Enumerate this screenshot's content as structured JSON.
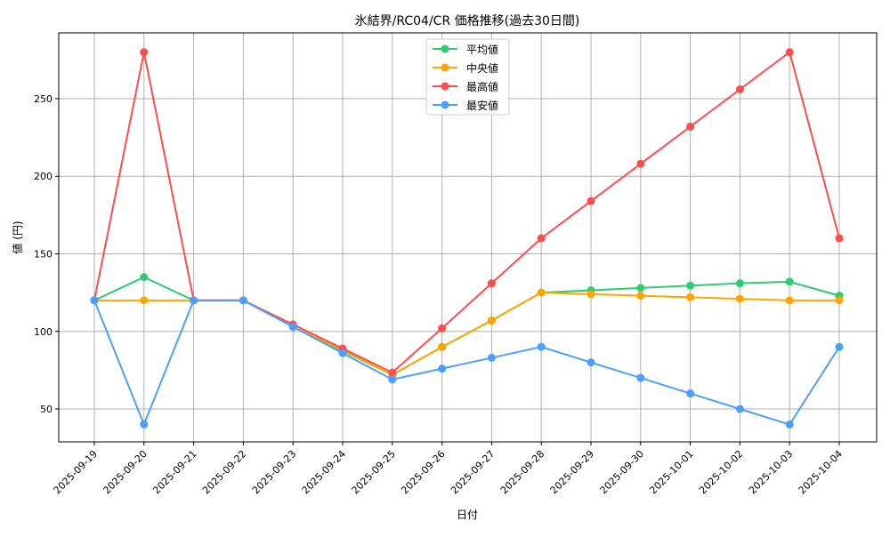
{
  "chart_data": {
    "type": "line",
    "title": "氷結界/RC04/CR 価格推移(過去30日間)",
    "xlabel": "日付",
    "ylabel": "値 (円)",
    "ylim": [
      28.8,
      292.4
    ],
    "yticks": [
      50,
      100,
      150,
      200,
      250
    ],
    "grid": true,
    "legend_position": "top-center",
    "categories": [
      "2025-09-19",
      "2025-09-20",
      "2025-09-21",
      "2025-09-22",
      "2025-09-23",
      "2025-09-24",
      "2025-09-25",
      "2025-09-26",
      "2025-09-27",
      "2025-09-28",
      "2025-09-29",
      "2025-09-30",
      "2025-10-01",
      "2025-10-02",
      "2025-10-03",
      "2025-10-04"
    ],
    "series": [
      {
        "name": "平均値",
        "color": "#2ecc71",
        "values": [
          120,
          135,
          120,
          120,
          103,
          87.5,
          72,
          90,
          107,
          125,
          126.5,
          128,
          129.5,
          131,
          132,
          123
        ]
      },
      {
        "name": "中央値",
        "color": "#ffa500",
        "values": [
          120,
          120,
          120,
          120,
          103,
          88,
          72,
          90,
          107,
          125,
          124,
          123,
          122,
          121,
          120,
          120
        ]
      },
      {
        "name": "最高値",
        "color": "#ff4d4d",
        "values": [
          120,
          280,
          120,
          120,
          104.5,
          89,
          73.5,
          102,
          131,
          160,
          184,
          208,
          232,
          256,
          280,
          160
        ]
      },
      {
        "name": "最安値",
        "color": "#4d9fff",
        "values": [
          120,
          40,
          120,
          120,
          103,
          86,
          69,
          76,
          83,
          90,
          80,
          70,
          60,
          50,
          40,
          90
        ]
      }
    ]
  }
}
